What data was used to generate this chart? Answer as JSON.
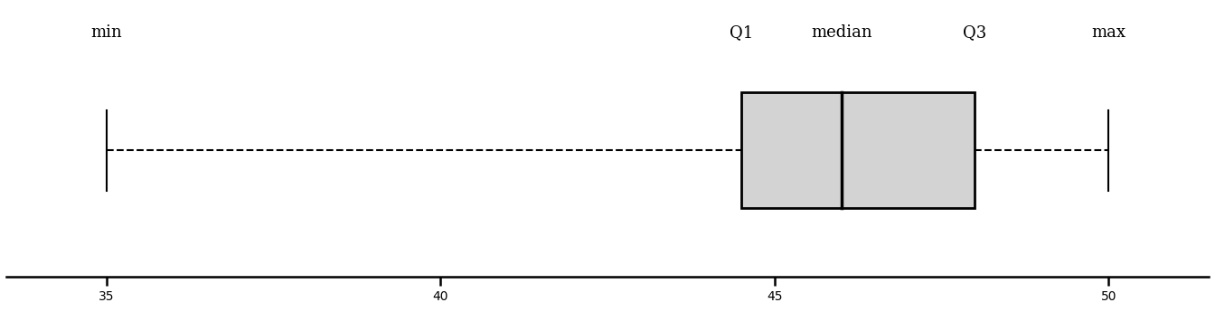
{
  "min": 35,
  "q1": 44.5,
  "median": 46.0,
  "q3": 48.0,
  "max": 50,
  "xlim": [
    33.5,
    51.5
  ],
  "box_color": "#d3d3d3",
  "box_edge_color": "#000000",
  "whisker_color": "#000000",
  "label_color": "#000000",
  "label_fontsize": 13,
  "tick_fontsize": 13,
  "tick_labels": [
    35,
    40,
    45,
    50
  ],
  "background_color": "#ffffff",
  "labels": {
    "min": {
      "text": "min",
      "x": 35
    },
    "q1": {
      "text": "Q1",
      "x": 44.5
    },
    "median": {
      "text": "median",
      "x": 46.0
    },
    "q3": {
      "text": "Q3",
      "x": 48.0
    },
    "max": {
      "text": "max",
      "x": 50
    }
  }
}
